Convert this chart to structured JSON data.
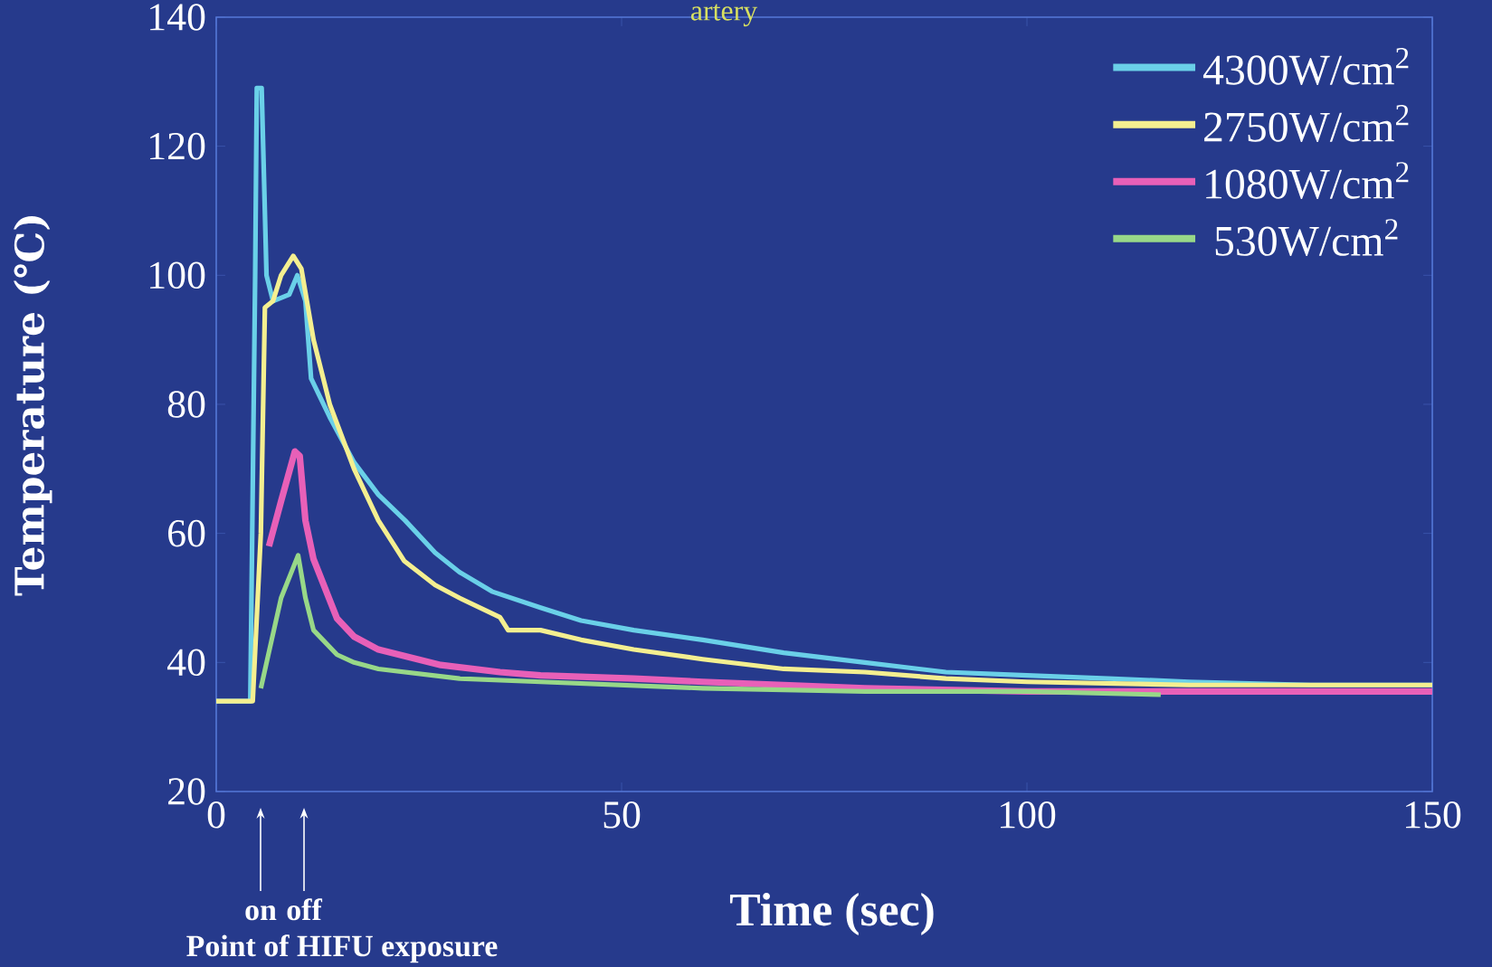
{
  "chart_data": {
    "type": "line",
    "title": "artery",
    "xlabel": "Time (sec)",
    "ylabel": "Temperature (℃)",
    "xlim": [
      0,
      150
    ],
    "ylim": [
      20,
      140
    ],
    "xticks": [
      0,
      50,
      100,
      150
    ],
    "yticks": [
      20,
      40,
      60,
      80,
      100,
      120,
      140
    ],
    "legend": "top right",
    "grid": false,
    "marker": "none",
    "line_style": "solid",
    "annotations": [
      "on",
      "off",
      "Point of HIFU exposure"
    ],
    "series": [
      {
        "name": "4300W/cm$^{2}$",
        "color": "#6ad0e8",
        "x": [
          0,
          4.2,
          4.8,
          5.0,
          5.6,
          6.2,
          7,
          9,
          10,
          11,
          11.7,
          14,
          17,
          20,
          23.3,
          27,
          30,
          34,
          40,
          45,
          51.5,
          60,
          70,
          80,
          90,
          100,
          110,
          120,
          135,
          150
        ],
        "values": [
          34,
          34,
          100,
          129,
          129,
          100,
          96,
          97,
          100,
          96,
          84,
          78,
          71,
          66,
          62,
          57,
          54,
          51,
          48.5,
          46.5,
          45,
          43.5,
          41.5,
          40,
          38.5,
          38,
          37.5,
          37,
          36.5,
          36.5
        ]
      },
      {
        "name": "2750W/cm$^{2}$",
        "color": "#f4ef90",
        "x": [
          0,
          4.5,
          5.5,
          6,
          7,
          8,
          9.5,
          10.5,
          12,
          14,
          17,
          20,
          23.2,
          27,
          30,
          35,
          36,
          40,
          45,
          51.5,
          60,
          70,
          80,
          90,
          100,
          120,
          135,
          150
        ],
        "values": [
          34,
          34,
          60,
          95,
          96,
          100,
          103,
          101,
          90,
          80,
          70,
          62,
          55.7,
          52,
          50,
          47,
          45,
          45,
          43.5,
          42,
          40.5,
          39,
          38.5,
          37.5,
          37,
          36.5,
          36.5,
          36.5
        ]
      },
      {
        "name": "1080W/cm$^{2}$",
        "color": "#e860b8",
        "x": [
          6.5,
          8,
          9.7,
          10.3,
          11,
          12,
          14.9,
          17,
          20,
          27.7,
          35,
          40,
          51.5,
          60,
          80,
          100,
          120,
          150
        ],
        "values": [
          58,
          65,
          72.7,
          72,
          62,
          56,
          46.8,
          44,
          42,
          39.6,
          38.5,
          38,
          37.5,
          37,
          36,
          35.5,
          35.5,
          35.5
        ]
      },
      {
        "name": "530W/cm$^{2}$",
        "color": "#98d888",
        "x": [
          5.5,
          6.3,
          8,
          10.1,
          11,
          12,
          14.9,
          17,
          20,
          30,
          40,
          60,
          80,
          100,
          116.5
        ],
        "values": [
          36,
          40.5,
          50,
          56.6,
          50,
          45,
          41.2,
          40,
          39,
          37.5,
          37,
          36,
          35.5,
          35.5,
          35
        ]
      }
    ]
  }
}
